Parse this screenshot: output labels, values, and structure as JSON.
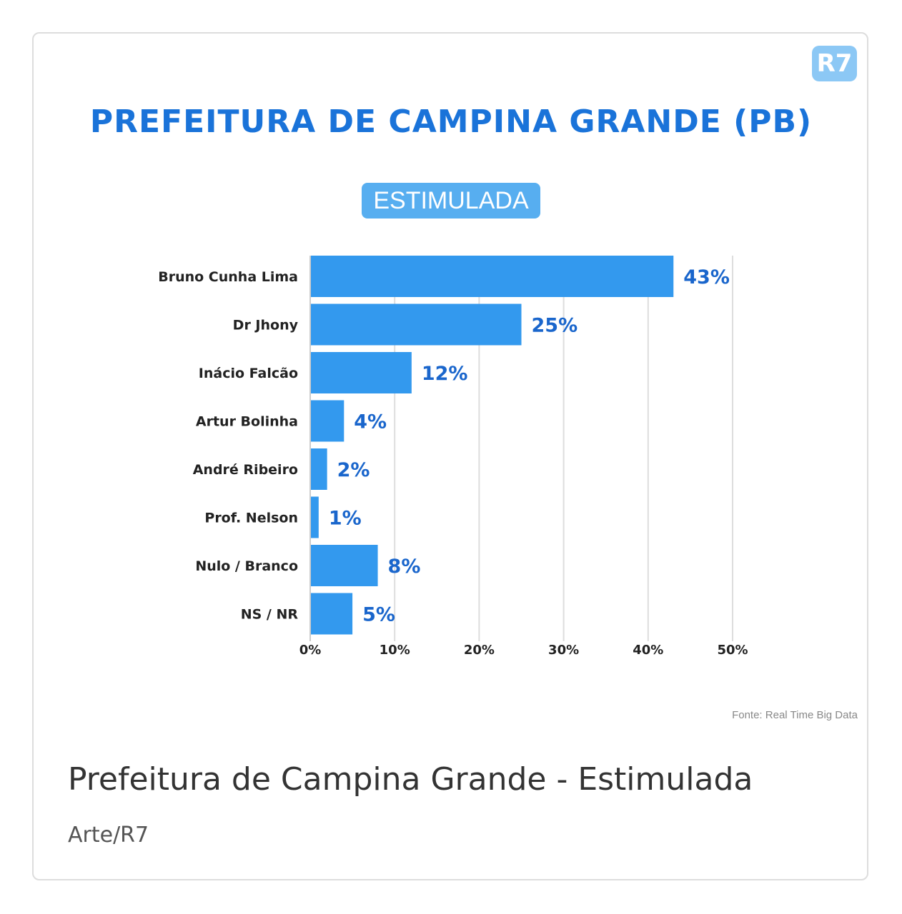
{
  "logo": "R7",
  "badge": "ESTIMULADA",
  "source": "Fonte: Real Time Big Data",
  "caption": "Prefeitura de Campina Grande - Estimulada",
  "credit": "Arte/R7",
  "colors": {
    "bar": "#3399ee",
    "label": "#1a66cc",
    "title": "#1a73d9"
  },
  "chart_data": {
    "type": "bar",
    "orientation": "horizontal",
    "title": "PREFEITURA DE CAMPINA GRANDE (PB)",
    "categories": [
      "Bruno Cunha Lima",
      "Dr Jhony",
      "Inácio Falcão",
      "Artur Bolinha",
      "André Ribeiro",
      "Prof. Nelson",
      "Nulo / Branco",
      "NS / NR"
    ],
    "values": [
      43,
      25,
      12,
      4,
      2,
      1,
      8,
      5
    ],
    "value_labels": [
      "43%",
      "25%",
      "12%",
      "4%",
      "2%",
      "1%",
      "8%",
      "5%"
    ],
    "xlim": [
      0,
      50
    ],
    "xticks": [
      0,
      10,
      20,
      30,
      40,
      50
    ],
    "xtick_labels": [
      "0%",
      "10%",
      "20%",
      "30%",
      "40%",
      "50%"
    ],
    "grid": true
  }
}
